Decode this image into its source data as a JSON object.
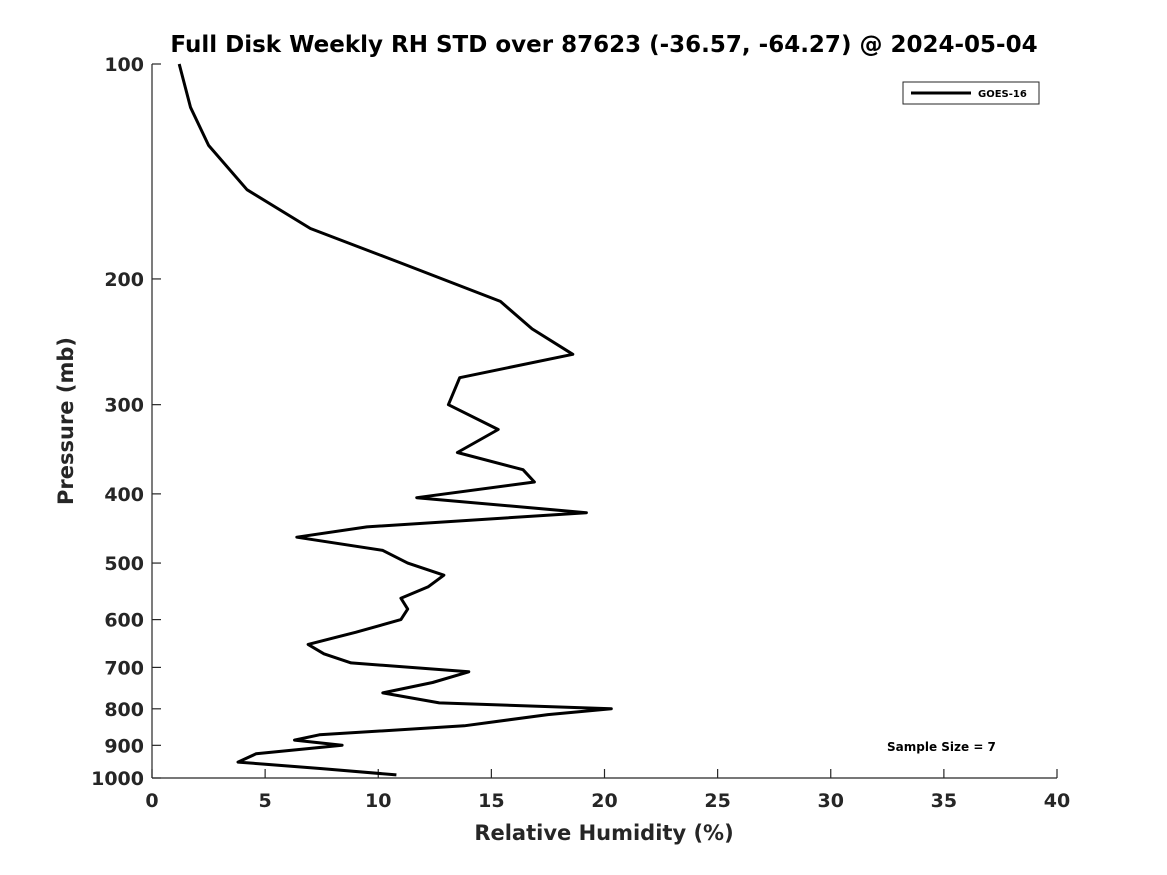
{
  "chart_data": {
    "type": "line",
    "title": "Full Disk Weekly RH STD over 87623 (-36.57, -64.27) @ 2024-05-04",
    "xlabel": "Relative Humidity (%)",
    "ylabel": "Pressure (mb)",
    "xlim": [
      0,
      40
    ],
    "ylim": [
      100,
      1000
    ],
    "y_scale": "log",
    "y_reversed": true,
    "grid": false,
    "x_ticks": [
      0,
      5,
      10,
      15,
      20,
      25,
      30,
      35,
      40
    ],
    "y_ticks": [
      100,
      200,
      300,
      400,
      500,
      600,
      700,
      800,
      900,
      1000
    ],
    "legend_position": "top-right",
    "color": "#000000",
    "series": [
      {
        "name": "GOES-16",
        "x": [
          1.2,
          1.7,
          2.5,
          4.2,
          7.0,
          11.0,
          15.4,
          16.8,
          18.6,
          13.6,
          13.1,
          15.3,
          13.5,
          16.4,
          16.9,
          11.7,
          19.2,
          9.5,
          6.4,
          10.2,
          11.3,
          12.9,
          12.2,
          11.0,
          11.3,
          11.0,
          9.0,
          6.9,
          7.6,
          8.8,
          14.0,
          12.4,
          10.2,
          12.7,
          20.3,
          17.5,
          13.8,
          7.4,
          6.3,
          8.4,
          4.6,
          3.8,
          7.5,
          10.8
        ],
        "y": [
          100,
          115,
          130,
          150,
          170,
          190,
          215,
          235,
          255,
          275,
          300,
          325,
          350,
          370,
          385,
          405,
          425,
          445,
          460,
          480,
          500,
          520,
          540,
          560,
          580,
          600,
          625,
          650,
          670,
          690,
          710,
          735,
          760,
          785,
          800,
          815,
          845,
          870,
          885,
          900,
          925,
          950,
          970,
          990
        ]
      }
    ],
    "annotation": "Sample Size = 7"
  }
}
